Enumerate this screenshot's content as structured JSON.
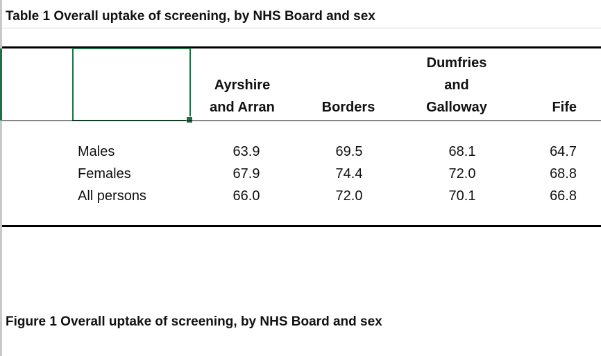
{
  "table": {
    "title": "Table 1 Overall uptake of screening, by NHS Board and sex",
    "columns": [
      {
        "lines": [
          "Ayrshire",
          "and Arran"
        ]
      },
      {
        "lines": [
          "Borders"
        ]
      },
      {
        "lines": [
          "Dumfries",
          "and",
          "Galloway"
        ]
      },
      {
        "lines": [
          "Fife"
        ]
      }
    ],
    "rows": [
      {
        "label": "Males",
        "values": [
          "63.9",
          "69.5",
          "68.1",
          "64.7"
        ]
      },
      {
        "label": "Females",
        "values": [
          "67.9",
          "74.4",
          "72.0",
          "68.8"
        ]
      },
      {
        "label": "All persons",
        "values": [
          "66.0",
          "72.0",
          "70.1",
          "66.8"
        ]
      }
    ]
  },
  "figure": {
    "title": "Figure 1 Overall uptake of screening, by NHS Board and sex"
  },
  "colors": {
    "selection_green": "#1e7145",
    "rule_black": "#000000"
  }
}
